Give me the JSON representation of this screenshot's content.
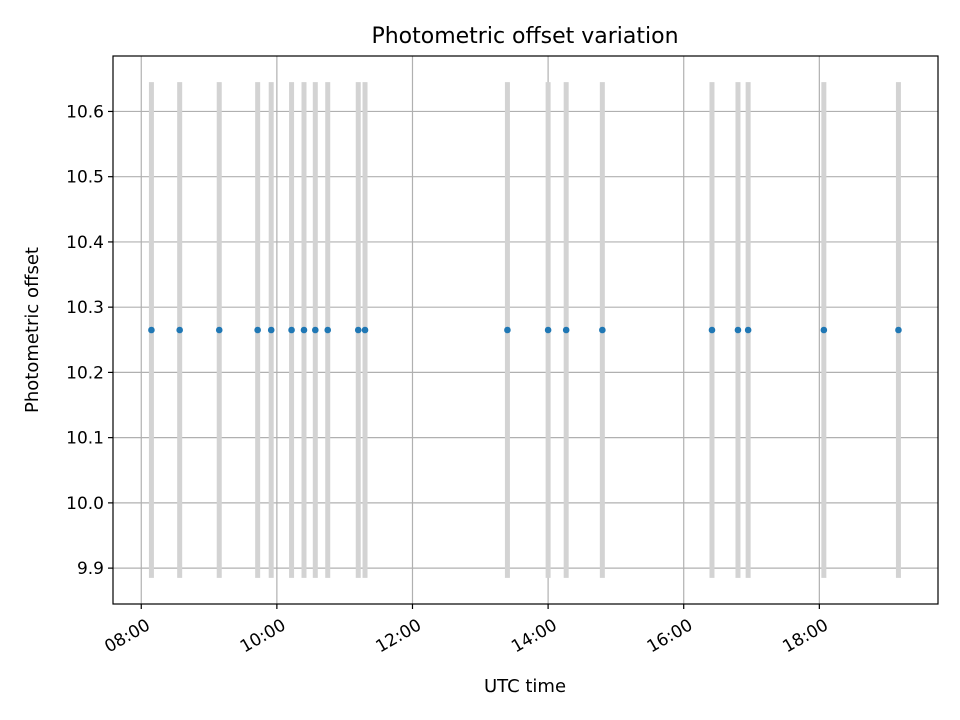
{
  "chart_data": {
    "type": "scatter",
    "title": "Photometric offset variation",
    "xlabel": "UTC time",
    "ylabel": "Photometric offset",
    "x_axis": {
      "kind": "time",
      "range": [
        "07:35",
        "19:45"
      ],
      "ticks": [
        "08:00",
        "10:00",
        "12:00",
        "14:00",
        "16:00",
        "18:00"
      ]
    },
    "y_axis": {
      "range": [
        9.845,
        10.685
      ],
      "ticks": [
        "9.9",
        "10.0",
        "10.1",
        "10.2",
        "10.3",
        "10.4",
        "10.5",
        "10.6"
      ]
    },
    "grid": true,
    "legend": false,
    "colors": {
      "points": "#1f77b4",
      "errorbars": "#d3d3d3",
      "grid": "#b0b0b0"
    },
    "points": [
      {
        "x": "08:09",
        "y": 10.265,
        "ylow": 9.885,
        "yhigh": 10.645
      },
      {
        "x": "08:34",
        "y": 10.265,
        "ylow": 9.885,
        "yhigh": 10.645
      },
      {
        "x": "09:09",
        "y": 10.265,
        "ylow": 9.885,
        "yhigh": 10.645
      },
      {
        "x": "09:43",
        "y": 10.265,
        "ylow": 9.885,
        "yhigh": 10.645
      },
      {
        "x": "09:55",
        "y": 10.265,
        "ylow": 9.885,
        "yhigh": 10.645
      },
      {
        "x": "10:13",
        "y": 10.265,
        "ylow": 9.885,
        "yhigh": 10.645
      },
      {
        "x": "10:24",
        "y": 10.265,
        "ylow": 9.885,
        "yhigh": 10.645
      },
      {
        "x": "10:34",
        "y": 10.265,
        "ylow": 9.885,
        "yhigh": 10.645
      },
      {
        "x": "10:45",
        "y": 10.265,
        "ylow": 9.885,
        "yhigh": 10.645
      },
      {
        "x": "11:12",
        "y": 10.265,
        "ylow": 9.885,
        "yhigh": 10.645
      },
      {
        "x": "11:18",
        "y": 10.265,
        "ylow": 9.885,
        "yhigh": 10.645
      },
      {
        "x": "13:24",
        "y": 10.265,
        "ylow": 9.885,
        "yhigh": 10.645
      },
      {
        "x": "14:00",
        "y": 10.265,
        "ylow": 9.885,
        "yhigh": 10.645
      },
      {
        "x": "14:16",
        "y": 10.265,
        "ylow": 9.885,
        "yhigh": 10.645
      },
      {
        "x": "14:48",
        "y": 10.265,
        "ylow": 9.885,
        "yhigh": 10.645
      },
      {
        "x": "16:25",
        "y": 10.265,
        "ylow": 9.885,
        "yhigh": 10.645
      },
      {
        "x": "16:48",
        "y": 10.265,
        "ylow": 9.885,
        "yhigh": 10.645
      },
      {
        "x": "16:57",
        "y": 10.265,
        "ylow": 9.885,
        "yhigh": 10.645
      },
      {
        "x": "18:04",
        "y": 10.265,
        "ylow": 9.885,
        "yhigh": 10.645
      },
      {
        "x": "19:10",
        "y": 10.265,
        "ylow": 9.885,
        "yhigh": 10.645
      }
    ]
  }
}
